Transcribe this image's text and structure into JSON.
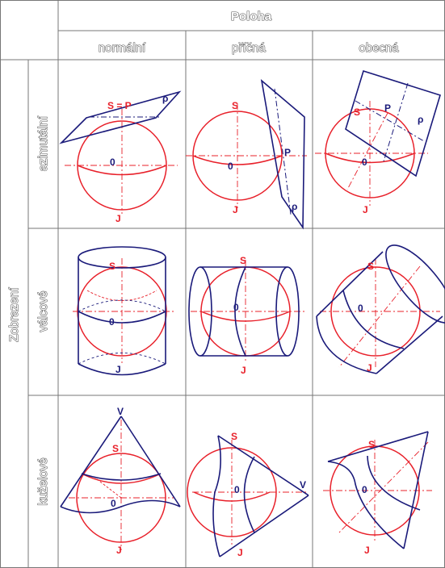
{
  "header": {
    "title": "Poloha",
    "columns": [
      "normální",
      "příčná",
      "obecná"
    ]
  },
  "rows_title": "Zobrazení",
  "rows": [
    "azimutální",
    "válcové",
    "kuželové"
  ],
  "labels": {
    "S": "S",
    "J": "J",
    "O": "0",
    "P": "P",
    "V": "V",
    "rho": "ρ",
    "SeqP": "S = P"
  },
  "colors": {
    "sphere": "#e8202a",
    "surface": "#1a1a7a",
    "header_text": "#ffffff",
    "grid": "#666666"
  }
}
